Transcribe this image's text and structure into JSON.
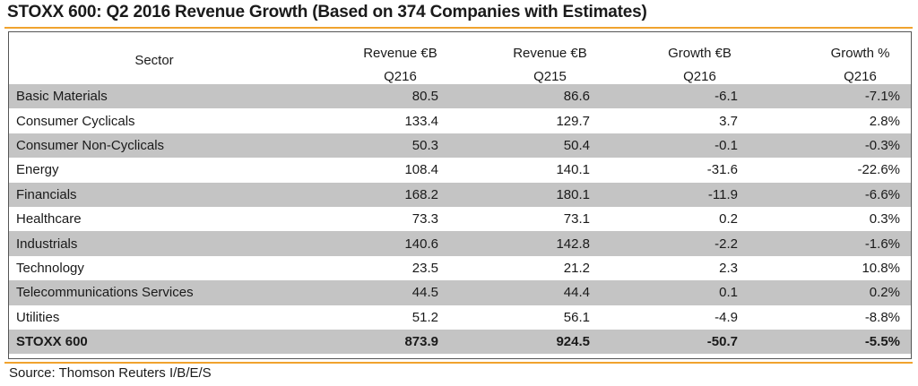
{
  "title": "STOXX 600: Q2 2016 Revenue Growth (Based on 374 Companies with Estimates)",
  "header": {
    "sector": "Sector",
    "col1": {
      "line1": "Revenue €B",
      "line2": "Q216"
    },
    "col2": {
      "line1": "Revenue €B",
      "line2": "Q215"
    },
    "col3": {
      "line1": "Growth €B",
      "line2": "Q216"
    },
    "col4": {
      "line1": "Growth %",
      "line2": "Q216"
    }
  },
  "rows": [
    {
      "sector": "Basic Materials",
      "rev_q216": "80.5",
      "rev_q215": "86.6",
      "growth_eur": "-6.1",
      "growth_pct": "-7.1%"
    },
    {
      "sector": "Consumer Cyclicals",
      "rev_q216": "133.4",
      "rev_q215": "129.7",
      "growth_eur": "3.7",
      "growth_pct": "2.8%"
    },
    {
      "sector": "Consumer Non-Cyclicals",
      "rev_q216": "50.3",
      "rev_q215": "50.4",
      "growth_eur": "-0.1",
      "growth_pct": "-0.3%"
    },
    {
      "sector": "Energy",
      "rev_q216": "108.4",
      "rev_q215": "140.1",
      "growth_eur": "-31.6",
      "growth_pct": "-22.6%"
    },
    {
      "sector": "Financials",
      "rev_q216": "168.2",
      "rev_q215": "180.1",
      "growth_eur": "-11.9",
      "growth_pct": "-6.6%"
    },
    {
      "sector": "Healthcare",
      "rev_q216": "73.3",
      "rev_q215": "73.1",
      "growth_eur": "0.2",
      "growth_pct": "0.3%"
    },
    {
      "sector": "Industrials",
      "rev_q216": "140.6",
      "rev_q215": "142.8",
      "growth_eur": "-2.2",
      "growth_pct": "-1.6%"
    },
    {
      "sector": "Technology",
      "rev_q216": "23.5",
      "rev_q215": "21.2",
      "growth_eur": "2.3",
      "growth_pct": "10.8%"
    },
    {
      "sector": "Telecommunications Services",
      "rev_q216": "44.5",
      "rev_q215": "44.4",
      "growth_eur": "0.1",
      "growth_pct": "0.2%"
    },
    {
      "sector": "Utilities",
      "rev_q216": "51.2",
      "rev_q215": "56.1",
      "growth_eur": "-4.9",
      "growth_pct": "-8.8%"
    }
  ],
  "total": {
    "sector": "STOXX 600",
    "rev_q216": "873.9",
    "rev_q215": "924.5",
    "growth_eur": "-50.7",
    "growth_pct": "-5.5%"
  },
  "source": "Source: Thomson Reuters I/B/E/S",
  "colors": {
    "accent_rule": "#f0a32e",
    "row_shade": "#c4c4c4"
  }
}
